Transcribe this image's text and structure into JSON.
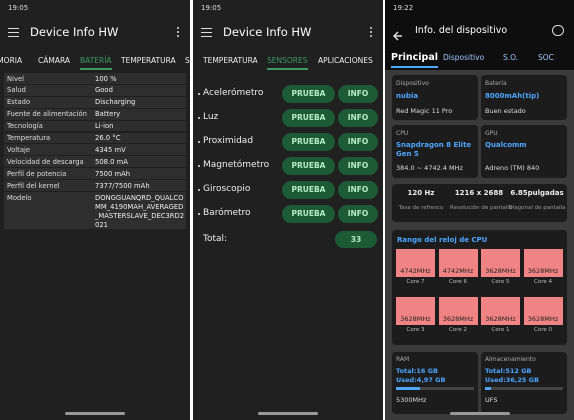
{
  "panel_battery": {
    "status_time": "19:05",
    "title": "Device Info HW",
    "tabs": [
      "MEMORIA",
      "CÁMARA",
      "BATERÍA",
      "TEMPERATURA",
      "S"
    ],
    "active_tab": 2,
    "rows": [
      [
        "Nivel",
        "100 %"
      ],
      [
        "Salud",
        "Good"
      ],
      [
        "Estado",
        "Discharging"
      ],
      [
        "Fuente de alimentación",
        "Battery"
      ],
      [
        "Tecnología",
        "Li-ion"
      ],
      [
        "Temperatura",
        "26.0 °C"
      ],
      [
        "Voltaje",
        "4345 mV"
      ],
      [
        "Velocidad de descarga",
        "508.0 mA"
      ],
      [
        "Perfil de potencia",
        "7500 mAh"
      ],
      [
        "Perfil del kernel",
        "7377/7500 mAh"
      ],
      [
        "Modelo",
        "DONGGUANQRD_QUALCOMM_4190MAH_AVERAGED_MASTERSLAVE_DEC3RD2021"
      ]
    ]
  },
  "panel_sensors": {
    "status_time": "19:05",
    "title": "Device Info HW",
    "tabs": [
      "TEMPERATURA",
      "SENSORES",
      "APLICACIONES"
    ],
    "active_tab": 1,
    "sensors": [
      {
        "name": "Acelerómetro",
        "test": "PRUEBA",
        "info": "INFO"
      },
      {
        "name": "Luz",
        "test": "PRUEBA",
        "info": "INFO"
      },
      {
        "name": "Proximidad",
        "test": "PRUEBA",
        "info": "INFO"
      },
      {
        "name": "Magnetómetro",
        "test": "PRUEBA",
        "info": "INFO"
      },
      {
        "name": "Giroscopio",
        "test": "PRUEBA",
        "info": "INFO"
      },
      {
        "name": "Barómetro",
        "test": "PRUEBA",
        "info": "INFO"
      }
    ],
    "total_label": "Total:",
    "total": "33"
  },
  "panel_device": {
    "status_time": "19:22",
    "title": "Info. del dispositivo",
    "tabs": [
      "Principal",
      "Dispositivo",
      "S.O.",
      "SOC"
    ],
    "active_tab": 0,
    "cards": [
      {
        "label": "Dispositivo",
        "main": "nubia",
        "sub": "Red Magic 11 Pro"
      },
      {
        "label": "Batería",
        "main": "8000mAh(tip)",
        "sub": "Buen estado"
      },
      {
        "label": "CPU",
        "main": "Snapdragon 8 Elite Gen 5",
        "sub": "384.0 ~ 4742.4 MHz"
      },
      {
        "label": "GPU",
        "main": "Qualcomm",
        "sub": "Adreno (TM) 840"
      }
    ],
    "display": [
      {
        "value": "120 Hz",
        "label": "Tasa de refresco"
      },
      {
        "value": "1216 x 2688",
        "label": "Resolución de pantalla"
      },
      {
        "value": "6.85pulgadas",
        "label": "Diagonal de pantalla"
      }
    ],
    "clock_title": "Rango del reloj de CPU",
    "cores": [
      {
        "freq": "4742MHz",
        "name": "Core 7"
      },
      {
        "freq": "4742MHz",
        "name": "Core 6"
      },
      {
        "freq": "3628MHz",
        "name": "Core 5"
      },
      {
        "freq": "3628MHz",
        "name": "Core 4"
      },
      {
        "freq": "3628MHz",
        "name": "Core 3"
      },
      {
        "freq": "3628MHz",
        "name": "Core 2"
      },
      {
        "freq": "3628MHz",
        "name": "Core 1"
      },
      {
        "freq": "3628MHz",
        "name": "Core 0"
      }
    ],
    "memory": [
      {
        "label": "RAM",
        "total": "Total:16 GB",
        "used": "Used:4,97 GB",
        "extra": "5300MHz"
      },
      {
        "label": "Almacenamiento",
        "total": "Total:512 GB",
        "used": "Used:36,25 GB",
        "extra": "UFS"
      }
    ]
  }
}
